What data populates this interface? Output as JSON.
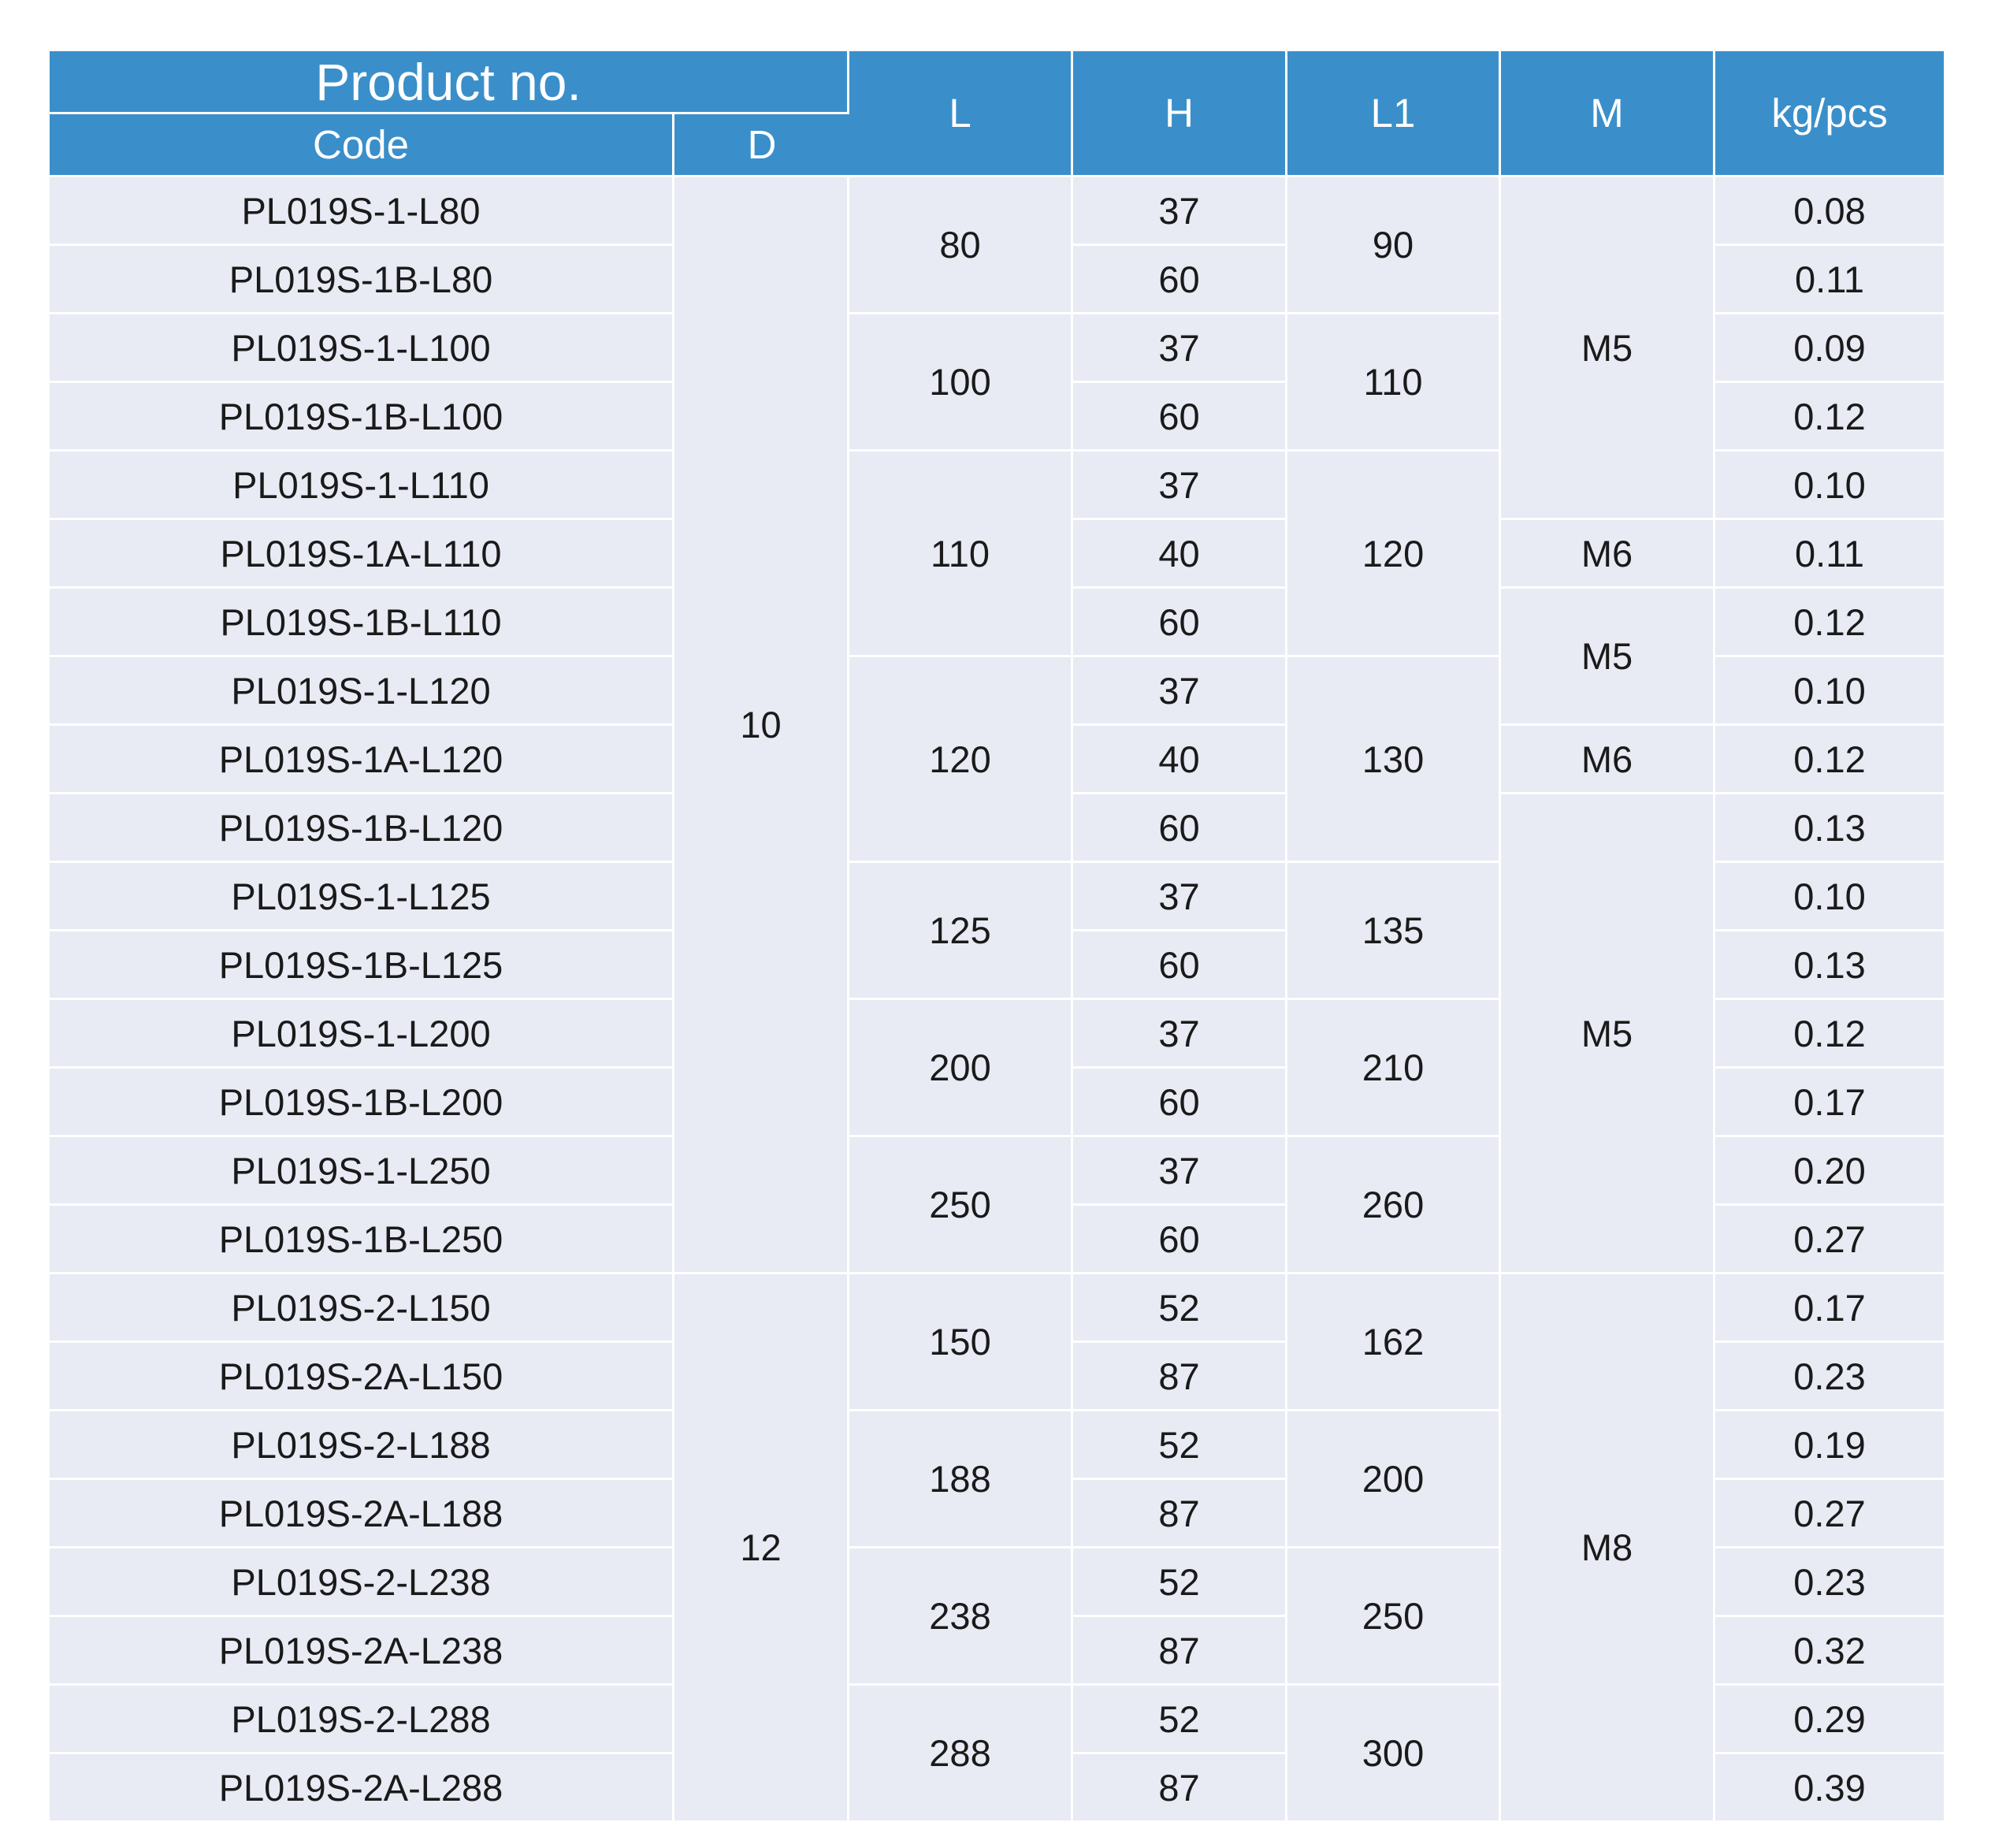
{
  "header": {
    "product_no": "Product no.",
    "code": "Code",
    "d": "D",
    "l": "L",
    "h": "H",
    "l1": "L1",
    "m": "M",
    "kg": "kg/pcs"
  },
  "rows": [
    {
      "code": "PL019S-1-L80",
      "h": "37",
      "kg": "0.08"
    },
    {
      "code": "PL019S-1B-L80",
      "h": "60",
      "kg": "0.11"
    },
    {
      "code": "PL019S-1-L100",
      "h": "37",
      "kg": "0.09"
    },
    {
      "code": "PL019S-1B-L100",
      "h": "60",
      "kg": "0.12"
    },
    {
      "code": "PL019S-1-L110",
      "h": "37",
      "kg": "0.10"
    },
    {
      "code": "PL019S-1A-L110",
      "h": "40",
      "kg": "0.11"
    },
    {
      "code": "PL019S-1B-L110",
      "h": "60",
      "kg": "0.12"
    },
    {
      "code": "PL019S-1-L120",
      "h": "37",
      "kg": "0.10"
    },
    {
      "code": "PL019S-1A-L120",
      "h": "40",
      "kg": "0.12"
    },
    {
      "code": "PL019S-1B-L120",
      "h": "60",
      "kg": "0.13"
    },
    {
      "code": "PL019S-1-L125",
      "h": "37",
      "kg": "0.10"
    },
    {
      "code": "PL019S-1B-L125",
      "h": "60",
      "kg": "0.13"
    },
    {
      "code": "PL019S-1-L200",
      "h": "37",
      "kg": "0.12"
    },
    {
      "code": "PL019S-1B-L200",
      "h": "60",
      "kg": "0.17"
    },
    {
      "code": "PL019S-1-L250",
      "h": "37",
      "kg": "0.20"
    },
    {
      "code": "PL019S-1B-L250",
      "h": "60",
      "kg": "0.27"
    },
    {
      "code": "PL019S-2-L150",
      "h": "52",
      "kg": "0.17"
    },
    {
      "code": "PL019S-2A-L150",
      "h": "87",
      "kg": "0.23"
    },
    {
      "code": "PL019S-2-L188",
      "h": "52",
      "kg": "0.19"
    },
    {
      "code": "PL019S-2A-L188",
      "h": "87",
      "kg": "0.27"
    },
    {
      "code": "PL019S-2-L238",
      "h": "52",
      "kg": "0.23"
    },
    {
      "code": "PL019S-2A-L238",
      "h": "87",
      "kg": "0.32"
    },
    {
      "code": "PL019S-2-L288",
      "h": "52",
      "kg": "0.29"
    },
    {
      "code": "PL019S-2A-L288",
      "h": "87",
      "kg": "0.39"
    }
  ],
  "d_groups": [
    {
      "value": "10",
      "span": 16
    },
    {
      "value": "12",
      "span": 8
    }
  ],
  "l_groups": [
    {
      "value": "80",
      "span": 2
    },
    {
      "value": "100",
      "span": 2
    },
    {
      "value": "110",
      "span": 3
    },
    {
      "value": "120",
      "span": 3
    },
    {
      "value": "125",
      "span": 2
    },
    {
      "value": "200",
      "span": 2
    },
    {
      "value": "250",
      "span": 2
    },
    {
      "value": "150",
      "span": 2
    },
    {
      "value": "188",
      "span": 2
    },
    {
      "value": "238",
      "span": 2
    },
    {
      "value": "288",
      "span": 2
    }
  ],
  "l1_groups": [
    {
      "value": "90",
      "span": 2
    },
    {
      "value": "110",
      "span": 2
    },
    {
      "value": "120",
      "span": 3
    },
    {
      "value": "130",
      "span": 3
    },
    {
      "value": "135",
      "span": 2
    },
    {
      "value": "210",
      "span": 2
    },
    {
      "value": "260",
      "span": 2
    },
    {
      "value": "162",
      "span": 2
    },
    {
      "value": "200",
      "span": 2
    },
    {
      "value": "250",
      "span": 2
    },
    {
      "value": "300",
      "span": 2
    }
  ],
  "m_groups": [
    {
      "value": "M5",
      "span": 5
    },
    {
      "value": "M6",
      "span": 1
    },
    {
      "value": "M5",
      "span": 2
    },
    {
      "value": "M6",
      "span": 1
    },
    {
      "value": "M5",
      "span": 7
    },
    {
      "value": "M8",
      "span": 8
    }
  ]
}
